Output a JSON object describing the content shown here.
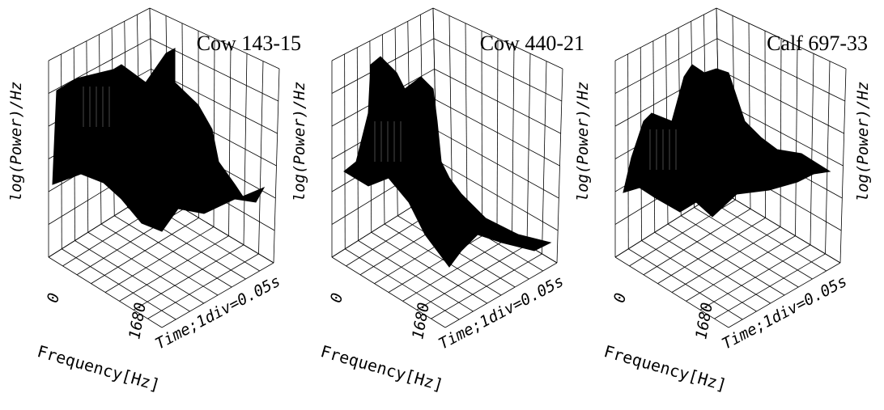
{
  "panels": [
    {
      "title": "Cow 143-15",
      "y_label": "log(Power)/Hz",
      "x_tick_low": "0",
      "x_tick_high": "1680",
      "time_label": "Time;1div=0.05s",
      "x_label": "Frequency[Hz]"
    },
    {
      "title": "Cow 440-21",
      "y_label": "log(Power)/Hz",
      "x_tick_low": "0",
      "x_tick_high": "1680",
      "time_label": "Time;1div=0.05s",
      "x_label": "Frequency[Hz]"
    },
    {
      "title": "Calf 697-33",
      "y_label": "log(Power)/Hz",
      "x_tick_low": "0",
      "x_tick_high": "1680",
      "time_label": "Time;1div=0.05s",
      "x_label": "Frequency[Hz]",
      "right_label": "log(Power)/Hz"
    }
  ]
}
